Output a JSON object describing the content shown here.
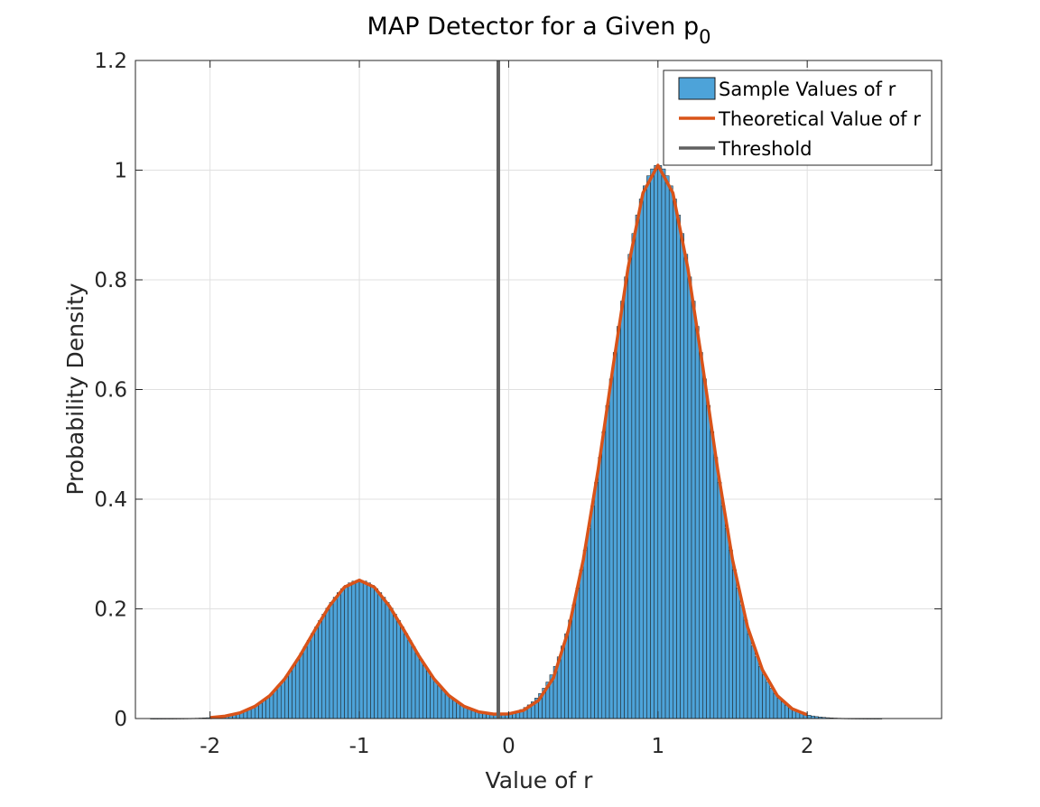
{
  "chart_data": {
    "type": "bar",
    "title": "MAP Detector for a Given p",
    "title_subscript": "0",
    "xlabel": "Value of r",
    "ylabel": "Probability Density",
    "xlim": [
      -2.5,
      2.9
    ],
    "ylim": [
      0,
      1.2
    ],
    "xticks": [
      -2,
      -1,
      0,
      1,
      2
    ],
    "yticks": [
      0,
      0.2,
      0.4,
      0.6,
      0.8,
      1,
      1.2
    ],
    "xtick_labels": [
      "-2",
      "-1",
      "0",
      "1",
      "2"
    ],
    "ytick_labels": [
      "0",
      "0.2",
      "0.4",
      "0.6",
      "0.8",
      "1",
      "1.2"
    ],
    "grid": true,
    "legend_location": "top-right",
    "legend": [
      {
        "label": "Sample Values of r",
        "kind": "patch"
      },
      {
        "label": "Theoretical Value of r",
        "kind": "line"
      },
      {
        "label": "Threshold",
        "kind": "line"
      }
    ],
    "histogram": {
      "name": "Sample Values of r",
      "bin_range": [
        -2.4,
        2.5
      ],
      "bin_width": 0.025,
      "mixture": {
        "components": [
          {
            "weight": 0.2,
            "mean": -1,
            "std": 0.3162
          },
          {
            "weight": 0.8,
            "mean": 1,
            "std": 0.3162
          }
        ]
      }
    },
    "series": [
      {
        "name": "Theoretical Value of r",
        "type": "line",
        "x": [
          -2.0,
          -1.9,
          -1.8,
          -1.7,
          -1.6,
          -1.5,
          -1.4,
          -1.3,
          -1.2,
          -1.1,
          -1.0,
          -0.9,
          -0.8,
          -0.7,
          -0.6,
          -0.5,
          -0.4,
          -0.3,
          -0.2,
          -0.1,
          0.0,
          0.1,
          0.2,
          0.3,
          0.4,
          0.5,
          0.6,
          0.7,
          0.8,
          0.9,
          1.0,
          1.1,
          1.2,
          1.3,
          1.4,
          1.5,
          1.6,
          1.7,
          1.8,
          1.9,
          2.0
        ],
        "y": [
          0.0017,
          0.0044,
          0.0104,
          0.0222,
          0.0418,
          0.0723,
          0.1136,
          0.1606,
          0.2054,
          0.2396,
          0.2523,
          0.2396,
          0.2054,
          0.1606,
          0.1136,
          0.0723,
          0.0418,
          0.0225,
          0.0122,
          0.008,
          0.0085,
          0.015,
          0.033,
          0.0741,
          0.1606,
          0.2894,
          0.4546,
          0.6427,
          0.8217,
          0.9586,
          1.009,
          0.9586,
          0.8217,
          0.6424,
          0.4543,
          0.2892,
          0.1672,
          0.0888,
          0.0416,
          0.0176,
          0.0068
        ]
      },
      {
        "name": "Threshold",
        "type": "vline",
        "x": -0.0693,
        "y": [
          0,
          1.2
        ]
      }
    ],
    "colors": {
      "bars": "#4DA3D9",
      "bar_edge": "#1a1a1a",
      "theory": "#D95319",
      "threshold": "#606060"
    }
  }
}
